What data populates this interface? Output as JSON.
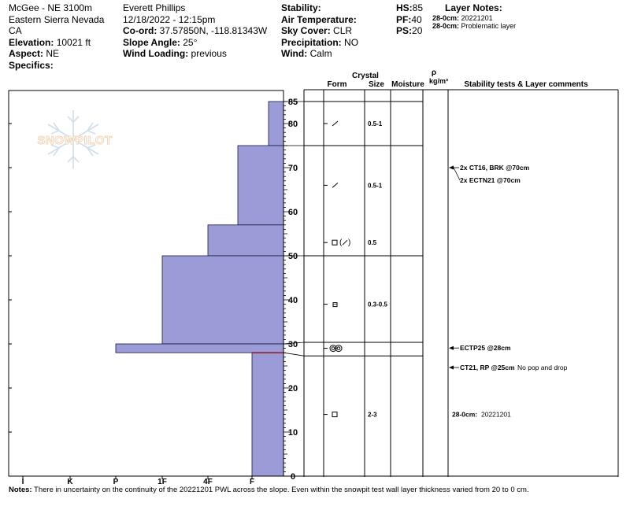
{
  "header": {
    "col1": {
      "location": "McGee - NE 3100m",
      "range": "Eastern Sierra Nevada",
      "state": "CA",
      "elevation_label": "Elevation:",
      "elevation": "10021 ft",
      "aspect_label": "Aspect:",
      "aspect": "NE",
      "specifics_label": "Specifics:"
    },
    "col2": {
      "observer": "Everett Phillips",
      "datetime": "12/18/2022 - 12:15pm",
      "coord_label": "Co-ord:",
      "coord": "37.57850N, -118.81343W",
      "slope_label": "Slope Angle:",
      "slope": "25°",
      "wind_loading_label": "Wind Loading:",
      "wind_loading": "previous"
    },
    "col3": {
      "stability_label": "Stability:",
      "air_temp_label": "Air Temperature:",
      "sky_cover_label": "Sky Cover:",
      "sky_cover": "CLR",
      "precip_label": "Precipitation:",
      "precip": "NO",
      "wind_label": "Wind:",
      "wind": "Calm"
    },
    "col4": {
      "hs_label": "HS:",
      "hs": "85",
      "pf_label": "PF:",
      "pf": "40",
      "ps_label": "PS:",
      "ps": "20"
    },
    "layer_notes": {
      "title": "Layer Notes:",
      "items": [
        {
          "depth": "28-0cm:",
          "text": "20221201"
        },
        {
          "depth": "28-0cm:",
          "text": "Problematic layer"
        }
      ]
    }
  },
  "columns": {
    "crystal": "Crystal",
    "form": "Form",
    "size": "Size",
    "moisture": "Moisture",
    "rho": "ρ",
    "density_unit": "kg/m³",
    "tests": "Stability tests & Layer comments"
  },
  "watermark": "SNOWPILOT",
  "notes": {
    "label": "Notes:",
    "text": "There in uncertainty on the continuity of the 20221201 PWL across the slope. Even within the snowpit test wall layer thickness varied from 20 to 0 cm."
  },
  "chart_data": {
    "type": "snow-profile",
    "y_axis": {
      "min": 0,
      "max": 85,
      "ticks": [
        0,
        10,
        20,
        30,
        40,
        50,
        60,
        70,
        80,
        85
      ]
    },
    "hardness_scale": [
      "I",
      "K",
      "P",
      "1F",
      "4F",
      "F"
    ],
    "hardness_layers": [
      {
        "top": 85,
        "bottom": 75,
        "hardness": "F+"
      },
      {
        "top": 75,
        "bottom": 57,
        "hardness": "4F-"
      },
      {
        "top": 57,
        "bottom": 50,
        "hardness": "4F"
      },
      {
        "top": 50,
        "bottom": 30,
        "hardness": "1F"
      },
      {
        "top": 30,
        "bottom": 28,
        "hardness": "P"
      },
      {
        "top": 28,
        "bottom": 0,
        "hardness": "F"
      }
    ],
    "layer_boundaries": [
      85,
      75,
      50,
      30,
      28
    ],
    "crystal_rows": [
      {
        "depth": 80,
        "form": "slash",
        "size": "0.5-1"
      },
      {
        "depth": 66,
        "form": "slash",
        "size": "0.5-1"
      },
      {
        "depth": 53,
        "form": "square-paren-slash",
        "size": "0.5"
      },
      {
        "depth": 39,
        "form": "square-small",
        "size": "0.3-0.5"
      },
      {
        "depth": 29,
        "form": "double-circle",
        "size": ""
      },
      {
        "depth": 14,
        "form": "square",
        "size": "2-3"
      }
    ],
    "stability_tests": [
      {
        "depth": 70,
        "text": "2x CT16, BRK @70cm",
        "note": ""
      },
      {
        "depth": 70,
        "text": "2x ECTN21 @70cm",
        "note": ""
      },
      {
        "depth": 28,
        "text": "ECTP25 @28cm",
        "note": ""
      },
      {
        "depth": 25,
        "text": "CT21, RP @25cm",
        "note": "No pop and drop"
      }
    ],
    "layer_comments": [
      {
        "depth": 14,
        "label": "28-0cm:",
        "text": "20221201"
      }
    ]
  }
}
